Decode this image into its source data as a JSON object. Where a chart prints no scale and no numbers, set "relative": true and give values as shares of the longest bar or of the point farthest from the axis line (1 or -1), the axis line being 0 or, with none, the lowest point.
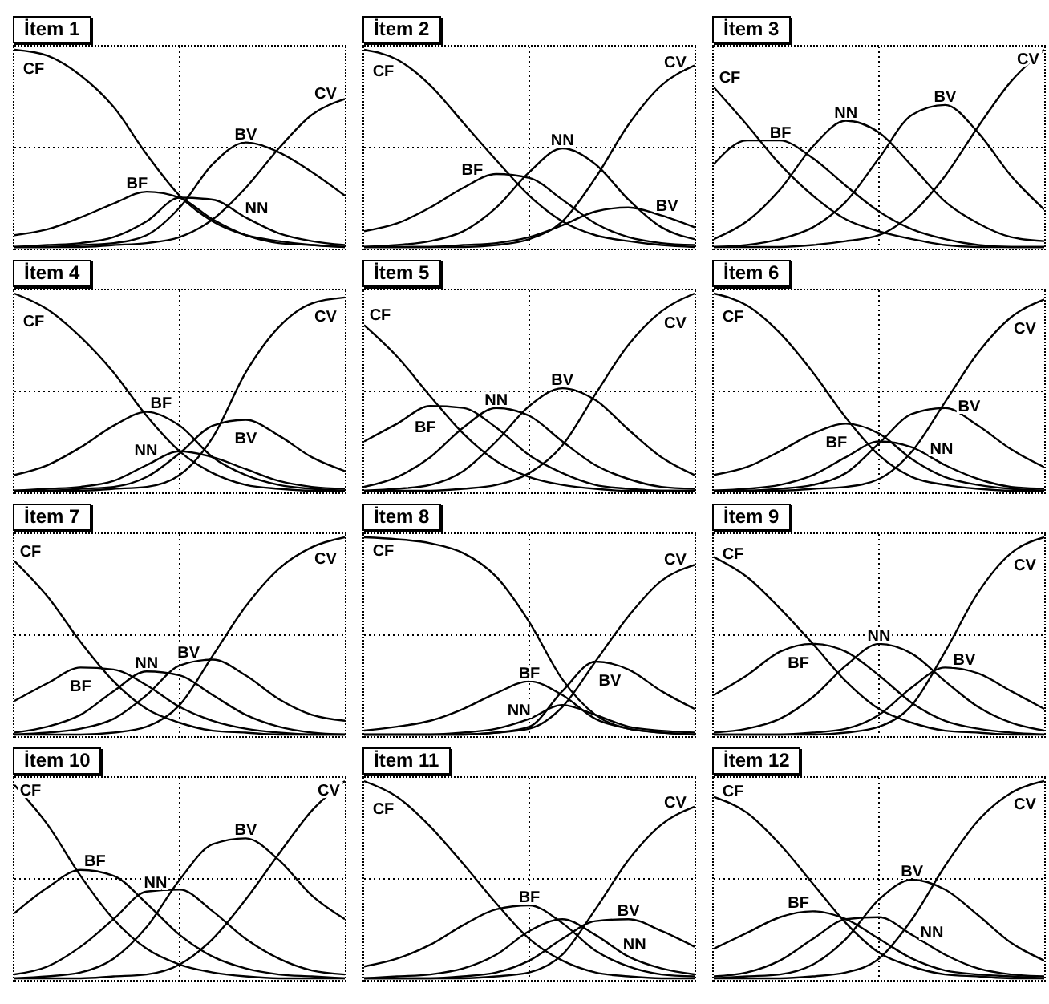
{
  "chart_data": [
    {
      "type": "line",
      "title": "İtem 1",
      "relative": true,
      "grid": true,
      "line_style": "solid",
      "marker": "none",
      "categories": [
        null,
        null,
        null,
        null,
        null,
        null,
        null,
        null,
        null,
        null,
        null
      ],
      "series": [
        {
          "name": "CF",
          "color": "#000000",
          "values": [
            1.0,
            0.97,
            0.87,
            0.71,
            0.47,
            0.26,
            0.13,
            0.06,
            0.03,
            0.01,
            0
          ]
        },
        {
          "name": "BF",
          "color": "#000000",
          "values": [
            0.06,
            0.09,
            0.15,
            0.22,
            0.28,
            0.25,
            0.14,
            0.06,
            0.02,
            0.01,
            0
          ]
        },
        {
          "name": "NN",
          "color": "#000000",
          "values": [
            0,
            0.01,
            0.02,
            0.05,
            0.13,
            0.25,
            0.24,
            0.15,
            0.07,
            0.03,
            0.01
          ]
        },
        {
          "name": "BV",
          "color": "#000000",
          "values": [
            0,
            0,
            0.01,
            0.02,
            0.06,
            0.2,
            0.42,
            0.53,
            0.48,
            0.38,
            0.26
          ]
        },
        {
          "name": "CV",
          "color": "#000000",
          "values": [
            0,
            0,
            0,
            0.01,
            0.02,
            0.05,
            0.14,
            0.3,
            0.5,
            0.67,
            0.75
          ]
        }
      ]
    },
    {
      "type": "line",
      "title": "İtem 2",
      "relative": true,
      "grid": true,
      "line_style": "solid",
      "marker": "none",
      "categories": [
        null,
        null,
        null,
        null,
        null,
        null,
        null,
        null,
        null,
        null,
        null
      ],
      "series": [
        {
          "name": "CF",
          "color": "#000000",
          "values": [
            1.0,
            0.95,
            0.82,
            0.63,
            0.44,
            0.26,
            0.13,
            0.06,
            0.03,
            0.01,
            0
          ]
        },
        {
          "name": "BF",
          "color": "#000000",
          "values": [
            0.08,
            0.12,
            0.2,
            0.3,
            0.37,
            0.35,
            0.24,
            0.12,
            0.05,
            0.02,
            0.01
          ]
        },
        {
          "name": "NN",
          "color": "#000000",
          "values": [
            0,
            0.01,
            0.03,
            0.08,
            0.2,
            0.38,
            0.5,
            0.42,
            0.24,
            0.1,
            0.04
          ]
        },
        {
          "name": "BV",
          "color": "#000000",
          "values": [
            0,
            0,
            0,
            0.01,
            0.02,
            0.05,
            0.11,
            0.18,
            0.2,
            0.16,
            0.1
          ]
        },
        {
          "name": "CV",
          "color": "#000000",
          "values": [
            0,
            0,
            0,
            0,
            0.01,
            0.04,
            0.13,
            0.35,
            0.62,
            0.82,
            0.92
          ]
        }
      ]
    },
    {
      "type": "line",
      "title": "İtem 3",
      "relative": true,
      "grid": true,
      "line_style": "solid",
      "marker": "none",
      "categories": [
        null,
        null,
        null,
        null,
        null,
        null,
        null,
        null,
        null,
        null,
        null
      ],
      "series": [
        {
          "name": "CF",
          "color": "#000000",
          "values": [
            0.81,
            0.62,
            0.42,
            0.26,
            0.14,
            0.08,
            0.04,
            0.01,
            0,
            0,
            0
          ]
        },
        {
          "name": "BF",
          "color": "#000000",
          "values": [
            0.42,
            0.54,
            0.54,
            0.45,
            0.31,
            0.18,
            0.09,
            0.04,
            0.01,
            0,
            0
          ]
        },
        {
          "name": "NN",
          "color": "#000000",
          "values": [
            0.04,
            0.13,
            0.29,
            0.51,
            0.64,
            0.58,
            0.41,
            0.23,
            0.12,
            0.05,
            0.03
          ]
        },
        {
          "name": "BV",
          "color": "#000000",
          "values": [
            0,
            0.01,
            0.04,
            0.1,
            0.23,
            0.45,
            0.67,
            0.72,
            0.58,
            0.36,
            0.19
          ]
        },
        {
          "name": "CV",
          "color": "#000000",
          "values": [
            0,
            0,
            0,
            0.01,
            0.03,
            0.06,
            0.17,
            0.36,
            0.61,
            0.84,
            1.0
          ]
        }
      ]
    },
    {
      "type": "line",
      "title": "İtem 4",
      "relative": true,
      "grid": true,
      "line_style": "solid",
      "marker": "none",
      "categories": [
        null,
        null,
        null,
        null,
        null,
        null,
        null,
        null,
        null,
        null,
        null
      ],
      "series": [
        {
          "name": "CF",
          "color": "#000000",
          "values": [
            1.0,
            0.92,
            0.78,
            0.6,
            0.38,
            0.2,
            0.09,
            0.03,
            0.01,
            0,
            0
          ]
        },
        {
          "name": "BF",
          "color": "#000000",
          "values": [
            0.08,
            0.13,
            0.22,
            0.33,
            0.4,
            0.33,
            0.17,
            0.08,
            0.03,
            0.01,
            0
          ]
        },
        {
          "name": "NN",
          "color": "#000000",
          "values": [
            0,
            0.01,
            0.02,
            0.05,
            0.13,
            0.2,
            0.17,
            0.11,
            0.05,
            0.02,
            0.01
          ]
        },
        {
          "name": "BV",
          "color": "#000000",
          "values": [
            0,
            0,
            0.01,
            0.02,
            0.07,
            0.19,
            0.33,
            0.36,
            0.28,
            0.17,
            0.1
          ]
        },
        {
          "name": "CV",
          "color": "#000000",
          "values": [
            0,
            0,
            0,
            0.01,
            0.02,
            0.08,
            0.27,
            0.6,
            0.83,
            0.95,
            0.98
          ]
        }
      ]
    },
    {
      "type": "line",
      "title": "İtem 5",
      "relative": true,
      "grid": true,
      "line_style": "solid",
      "marker": "none",
      "categories": [
        null,
        null,
        null,
        null,
        null,
        null,
        null,
        null,
        null,
        null,
        null
      ],
      "series": [
        {
          "name": "CF",
          "color": "#000000",
          "values": [
            0.84,
            0.68,
            0.48,
            0.29,
            0.15,
            0.07,
            0.03,
            0.01,
            0,
            0,
            0
          ]
        },
        {
          "name": "BF",
          "color": "#000000",
          "values": [
            0.25,
            0.34,
            0.43,
            0.42,
            0.32,
            0.18,
            0.09,
            0.03,
            0.01,
            0,
            0
          ]
        },
        {
          "name": "NN",
          "color": "#000000",
          "values": [
            0.02,
            0.07,
            0.17,
            0.32,
            0.42,
            0.38,
            0.25,
            0.13,
            0.06,
            0.02,
            0.01
          ]
        },
        {
          "name": "BV",
          "color": "#000000",
          "values": [
            0,
            0.01,
            0.03,
            0.1,
            0.25,
            0.43,
            0.52,
            0.46,
            0.31,
            0.17,
            0.08
          ]
        },
        {
          "name": "CV",
          "color": "#000000",
          "values": [
            0,
            0,
            0,
            0.01,
            0.03,
            0.09,
            0.23,
            0.49,
            0.74,
            0.91,
            1.0
          ]
        }
      ]
    },
    {
      "type": "line",
      "title": "İtem 6",
      "relative": true,
      "grid": true,
      "line_style": "solid",
      "marker": "none",
      "categories": [
        null,
        null,
        null,
        null,
        null,
        null,
        null,
        null,
        null,
        null,
        null
      ],
      "series": [
        {
          "name": "CF",
          "color": "#000000",
          "values": [
            1.0,
            0.94,
            0.8,
            0.6,
            0.37,
            0.18,
            0.07,
            0.03,
            0.01,
            0,
            0
          ]
        },
        {
          "name": "BF",
          "color": "#000000",
          "values": [
            0.08,
            0.12,
            0.2,
            0.29,
            0.34,
            0.29,
            0.16,
            0.07,
            0.03,
            0.01,
            0
          ]
        },
        {
          "name": "NN",
          "color": "#000000",
          "values": [
            0,
            0.01,
            0.03,
            0.08,
            0.17,
            0.25,
            0.22,
            0.13,
            0.06,
            0.02,
            0.01
          ]
        },
        {
          "name": "BV",
          "color": "#000000",
          "values": [
            0,
            0,
            0.01,
            0.03,
            0.09,
            0.24,
            0.39,
            0.42,
            0.33,
            0.21,
            0.12
          ]
        },
        {
          "name": "CV",
          "color": "#000000",
          "values": [
            0,
            0,
            0,
            0.01,
            0.02,
            0.06,
            0.2,
            0.45,
            0.7,
            0.88,
            0.97
          ]
        }
      ]
    },
    {
      "type": "line",
      "title": "İtem 7",
      "relative": true,
      "grid": true,
      "line_style": "solid",
      "marker": "none",
      "categories": [
        null,
        null,
        null,
        null,
        null,
        null,
        null,
        null,
        null,
        null,
        null
      ],
      "series": [
        {
          "name": "CF",
          "color": "#000000",
          "values": [
            0.88,
            0.7,
            0.47,
            0.27,
            0.13,
            0.06,
            0.02,
            0.01,
            0,
            0,
            0
          ]
        },
        {
          "name": "BF",
          "color": "#000000",
          "values": [
            0.17,
            0.26,
            0.34,
            0.33,
            0.25,
            0.14,
            0.07,
            0.03,
            0.01,
            0,
            0
          ]
        },
        {
          "name": "NN",
          "color": "#000000",
          "values": [
            0.01,
            0.04,
            0.1,
            0.22,
            0.32,
            0.3,
            0.2,
            0.1,
            0.04,
            0.01,
            0
          ]
        },
        {
          "name": "BV",
          "color": "#000000",
          "values": [
            0,
            0.01,
            0.03,
            0.08,
            0.2,
            0.35,
            0.38,
            0.3,
            0.18,
            0.1,
            0.07
          ]
        },
        {
          "name": "CV",
          "color": "#000000",
          "values": [
            0,
            0,
            0,
            0.01,
            0.04,
            0.15,
            0.4,
            0.65,
            0.84,
            0.95,
            1.0
          ]
        }
      ]
    },
    {
      "type": "line",
      "title": "İtem 8",
      "relative": true,
      "grid": true,
      "line_style": "solid",
      "marker": "none",
      "categories": [
        null,
        null,
        null,
        null,
        null,
        null,
        null,
        null,
        null,
        null,
        null
      ],
      "series": [
        {
          "name": "CF",
          "color": "#000000",
          "values": [
            1.0,
            0.99,
            0.97,
            0.92,
            0.8,
            0.57,
            0.28,
            0.1,
            0.03,
            0.01,
            0
          ]
        },
        {
          "name": "BF",
          "color": "#000000",
          "values": [
            0.02,
            0.04,
            0.07,
            0.13,
            0.21,
            0.27,
            0.2,
            0.08,
            0.03,
            0.01,
            0
          ]
        },
        {
          "name": "NN",
          "color": "#000000",
          "values": [
            0,
            0,
            0,
            0.01,
            0.03,
            0.08,
            0.15,
            0.1,
            0.04,
            0.02,
            0.01
          ]
        },
        {
          "name": "BV",
          "color": "#000000",
          "values": [
            0,
            0,
            0,
            0,
            0.01,
            0.04,
            0.22,
            0.37,
            0.33,
            0.22,
            0.13
          ]
        },
        {
          "name": "CV",
          "color": "#000000",
          "values": [
            0,
            0,
            0,
            0,
            0.01,
            0.03,
            0.14,
            0.37,
            0.6,
            0.78,
            0.86
          ]
        }
      ]
    },
    {
      "type": "line",
      "title": "İtem 9",
      "relative": true,
      "grid": true,
      "line_style": "solid",
      "marker": "none",
      "categories": [
        null,
        null,
        null,
        null,
        null,
        null,
        null,
        null,
        null,
        null,
        null
      ],
      "series": [
        {
          "name": "CF",
          "color": "#000000",
          "values": [
            0.9,
            0.8,
            0.64,
            0.46,
            0.27,
            0.13,
            0.06,
            0.02,
            0.01,
            0,
            0
          ]
        },
        {
          "name": "BF",
          "color": "#000000",
          "values": [
            0.2,
            0.3,
            0.42,
            0.46,
            0.42,
            0.3,
            0.16,
            0.07,
            0.03,
            0.01,
            0
          ]
        },
        {
          "name": "NN",
          "color": "#000000",
          "values": [
            0.01,
            0.03,
            0.08,
            0.19,
            0.35,
            0.46,
            0.41,
            0.27,
            0.14,
            0.06,
            0.02
          ]
        },
        {
          "name": "BV",
          "color": "#000000",
          "values": [
            0,
            0,
            0,
            0.01,
            0.03,
            0.1,
            0.24,
            0.34,
            0.31,
            0.22,
            0.13
          ]
        },
        {
          "name": "CV",
          "color": "#000000",
          "values": [
            0,
            0,
            0,
            0,
            0.01,
            0.04,
            0.15,
            0.42,
            0.72,
            0.92,
            1.0
          ]
        }
      ]
    },
    {
      "type": "line",
      "title": "İtem 10",
      "relative": true,
      "grid": true,
      "line_style": "solid",
      "marker": "none",
      "categories": [
        null,
        null,
        null,
        null,
        null,
        null,
        null,
        null,
        null,
        null,
        null
      ],
      "series": [
        {
          "name": "CF",
          "color": "#000000",
          "values": [
            0.98,
            0.78,
            0.52,
            0.3,
            0.15,
            0.07,
            0.03,
            0.01,
            0,
            0,
            0
          ]
        },
        {
          "name": "BF",
          "color": "#000000",
          "values": [
            0.33,
            0.46,
            0.55,
            0.52,
            0.38,
            0.22,
            0.11,
            0.05,
            0.02,
            0.01,
            0
          ]
        },
        {
          "name": "NN",
          "color": "#000000",
          "values": [
            0.02,
            0.06,
            0.16,
            0.3,
            0.44,
            0.45,
            0.34,
            0.2,
            0.1,
            0.04,
            0.02
          ]
        },
        {
          "name": "BV",
          "color": "#000000",
          "values": [
            0,
            0.01,
            0.03,
            0.1,
            0.26,
            0.5,
            0.68,
            0.71,
            0.6,
            0.42,
            0.3
          ]
        },
        {
          "name": "CV",
          "color": "#000000",
          "values": [
            0,
            0,
            0,
            0.01,
            0.02,
            0.07,
            0.2,
            0.4,
            0.63,
            0.85,
            1.0
          ]
        }
      ]
    },
    {
      "type": "line",
      "title": "İtem 11",
      "relative": true,
      "grid": true,
      "line_style": "solid",
      "marker": "none",
      "categories": [
        null,
        null,
        null,
        null,
        null,
        null,
        null,
        null,
        null,
        null,
        null
      ],
      "series": [
        {
          "name": "CF",
          "color": "#000000",
          "values": [
            1.0,
            0.92,
            0.77,
            0.58,
            0.38,
            0.2,
            0.09,
            0.03,
            0.01,
            0,
            0
          ]
        },
        {
          "name": "BF",
          "color": "#000000",
          "values": [
            0.06,
            0.1,
            0.17,
            0.27,
            0.35,
            0.37,
            0.28,
            0.14,
            0.06,
            0.02,
            0.01
          ]
        },
        {
          "name": "NN",
          "color": "#000000",
          "values": [
            0,
            0.01,
            0.02,
            0.05,
            0.12,
            0.24,
            0.3,
            0.22,
            0.11,
            0.05,
            0.02
          ]
        },
        {
          "name": "BV",
          "color": "#000000",
          "values": [
            0,
            0,
            0,
            0.01,
            0.03,
            0.09,
            0.2,
            0.29,
            0.3,
            0.24,
            0.16
          ]
        },
        {
          "name": "CV",
          "color": "#000000",
          "values": [
            0,
            0,
            0,
            0,
            0.01,
            0.03,
            0.12,
            0.35,
            0.6,
            0.78,
            0.87
          ]
        }
      ]
    },
    {
      "type": "line",
      "title": "İtem 12",
      "relative": true,
      "grid": true,
      "line_style": "solid",
      "marker": "none",
      "categories": [
        null,
        null,
        null,
        null,
        null,
        null,
        null,
        null,
        null,
        null,
        null
      ],
      "series": [
        {
          "name": "CF",
          "color": "#000000",
          "values": [
            0.92,
            0.84,
            0.68,
            0.48,
            0.28,
            0.13,
            0.06,
            0.02,
            0.01,
            0,
            0
          ]
        },
        {
          "name": "BF",
          "color": "#000000",
          "values": [
            0.15,
            0.23,
            0.31,
            0.34,
            0.3,
            0.2,
            0.1,
            0.04,
            0.02,
            0.01,
            0
          ]
        },
        {
          "name": "NN",
          "color": "#000000",
          "values": [
            0.01,
            0.03,
            0.09,
            0.2,
            0.3,
            0.31,
            0.22,
            0.12,
            0.05,
            0.02,
            0.01
          ]
        },
        {
          "name": "BV",
          "color": "#000000",
          "values": [
            0,
            0.01,
            0.02,
            0.07,
            0.2,
            0.4,
            0.5,
            0.45,
            0.32,
            0.18,
            0.09
          ]
        },
        {
          "name": "CV",
          "color": "#000000",
          "values": [
            0,
            0,
            0,
            0.01,
            0.03,
            0.1,
            0.3,
            0.57,
            0.8,
            0.94,
            1.0
          ]
        }
      ]
    }
  ]
}
